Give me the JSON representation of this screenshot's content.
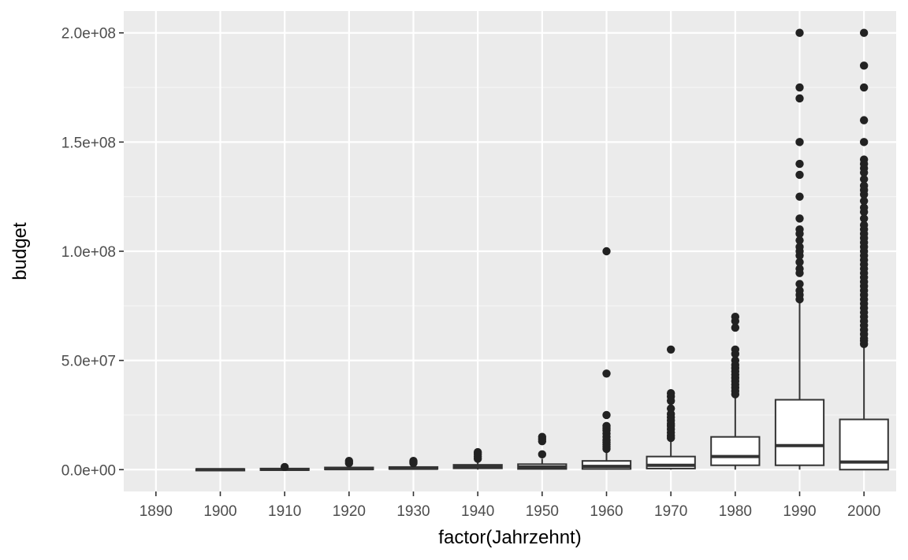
{
  "chart_data": {
    "type": "box",
    "xlabel": "factor(Jahrzehnt)",
    "ylabel": "budget",
    "ylim": [
      -10000000,
      210000000
    ],
    "yticks": [
      0,
      50000000,
      100000000,
      150000000,
      200000000
    ],
    "ytick_labels": [
      "0.0e+00",
      "5.0e+07",
      "1.0e+08",
      "1.5e+08",
      "2.0e+08"
    ],
    "categories": [
      "1890",
      "1900",
      "1910",
      "1920",
      "1930",
      "1940",
      "1950",
      "1960",
      "1970",
      "1980",
      "1990",
      "2000"
    ],
    "boxes": [
      {
        "category": "1890",
        "empty": true
      },
      {
        "category": "1900",
        "min": 0,
        "q1": 0,
        "median": 0,
        "q3": 300000,
        "max": 500000,
        "outliers": []
      },
      {
        "category": "1910",
        "min": 0,
        "q1": 0,
        "median": 100000,
        "q3": 500000,
        "max": 900000,
        "outliers": [
          1200000
        ]
      },
      {
        "category": "1920",
        "min": 0,
        "q1": 100000,
        "median": 400000,
        "q3": 1000000,
        "max": 2000000,
        "outliers": [
          3000000,
          4000000
        ]
      },
      {
        "category": "1930",
        "min": 0,
        "q1": 300000,
        "median": 600000,
        "q3": 1200000,
        "max": 2500000,
        "outliers": [
          3000000,
          3500000,
          4000000
        ]
      },
      {
        "category": "1940",
        "min": 0,
        "q1": 600000,
        "median": 1200000,
        "q3": 2200000,
        "max": 4000000,
        "outliers": [
          5000000,
          6000000,
          7000000,
          8000000
        ]
      },
      {
        "category": "1950",
        "min": 0,
        "q1": 300000,
        "median": 1200000,
        "q3": 2500000,
        "max": 5000000,
        "outliers": [
          7000000,
          13000000,
          14000000,
          15000000
        ]
      },
      {
        "category": "1960",
        "min": 0,
        "q1": 300000,
        "median": 1500000,
        "q3": 4000000,
        "max": 8000000,
        "outliers": [
          9500000,
          10500000,
          11500000,
          12500000,
          13500000,
          15000000,
          16500000,
          18000000,
          19000000,
          20000000,
          25000000,
          44000000,
          100000000
        ]
      },
      {
        "category": "1970",
        "min": 0,
        "q1": 500000,
        "median": 2000000,
        "q3": 6000000,
        "max": 13000000,
        "outliers": [
          14500000,
          15500000,
          17000000,
          18500000,
          20000000,
          21000000,
          22500000,
          24000000,
          25500000,
          28000000,
          31500000,
          33500000,
          35000000,
          55000000
        ]
      },
      {
        "category": "1980",
        "min": 0,
        "q1": 2000000,
        "median": 6000000,
        "q3": 15000000,
        "max": 33000000,
        "outliers": [
          34500000,
          36000000,
          37500000,
          39000000,
          40500000,
          42000000,
          43500000,
          45000000,
          46500000,
          48000000,
          50000000,
          53000000,
          55000000,
          65000000,
          68000000,
          70000000
        ]
      },
      {
        "category": "1990",
        "min": 0,
        "q1": 2000000,
        "median": 11000000,
        "q3": 32000000,
        "max": 77000000,
        "outliers": [
          78000000,
          80000000,
          82000000,
          85000000,
          90000000,
          92000000,
          95000000,
          98000000,
          100000000,
          102000000,
          105000000,
          108000000,
          110000000,
          115000000,
          125000000,
          135000000,
          140000000,
          150000000,
          170000000,
          175000000,
          200000000
        ]
      },
      {
        "category": "2000",
        "min": 0,
        "q1": 0,
        "median": 3500000,
        "q3": 23000000,
        "max": 57000000,
        "outliers": [
          57500000,
          59000000,
          60000000,
          62000000,
          64000000,
          66000000,
          68000000,
          70000000,
          72000000,
          74000000,
          76000000,
          78000000,
          80000000,
          82000000,
          84000000,
          86000000,
          88000000,
          90000000,
          92000000,
          94000000,
          96000000,
          98000000,
          100000000,
          102000000,
          104000000,
          106000000,
          108000000,
          110000000,
          112000000,
          115000000,
          118000000,
          120000000,
          123000000,
          126000000,
          128000000,
          130000000,
          133000000,
          136000000,
          138000000,
          140000000,
          142000000,
          150000000,
          160000000,
          175000000,
          185000000,
          200000000
        ]
      }
    ]
  }
}
